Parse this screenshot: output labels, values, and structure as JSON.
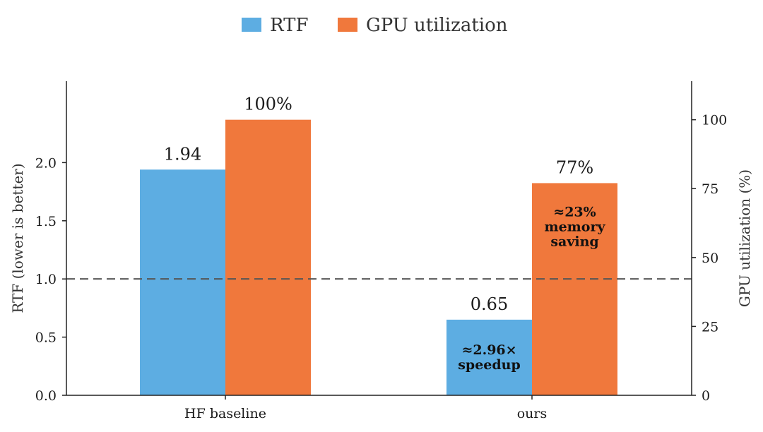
{
  "chart_data": {
    "type": "bar",
    "categories": [
      "HF baseline",
      "ours"
    ],
    "series": [
      {
        "name": "RTF",
        "axis": "left",
        "values": [
          1.94,
          0.65
        ],
        "value_labels": [
          "1.94",
          "0.65"
        ],
        "color": "#5DADE2"
      },
      {
        "name": "GPU utilization",
        "axis": "right",
        "values": [
          100,
          77
        ],
        "value_labels": [
          "100%",
          "77%"
        ],
        "color": "#F0783C"
      }
    ],
    "ylabel": "RTF (lower is better)",
    "ylabel_right": "GPU utilization (%)",
    "ylim": [
      0,
      2.7
    ],
    "ylim_right": [
      0,
      114
    ],
    "yticks": [
      0.0,
      0.5,
      1.0,
      1.5,
      2.0
    ],
    "ytick_labels": [
      "0.0",
      "0.5",
      "1.0",
      "1.5",
      "2.0"
    ],
    "yticks_right": [
      0,
      25,
      50,
      75,
      100
    ],
    "ytick_labels_right": [
      "0",
      "25",
      "50",
      "75",
      "100"
    ],
    "reference_line": {
      "y": 1.0,
      "style": "dashed",
      "color": "#555555"
    },
    "annotations": [
      {
        "series": 0,
        "category": 1,
        "lines": [
          "≈2.96×",
          "speedup"
        ]
      },
      {
        "series": 1,
        "category": 1,
        "lines": [
          "≈23%",
          "memory",
          "saving"
        ]
      }
    ],
    "legend": {
      "placement": "top-center"
    },
    "grid": false
  }
}
